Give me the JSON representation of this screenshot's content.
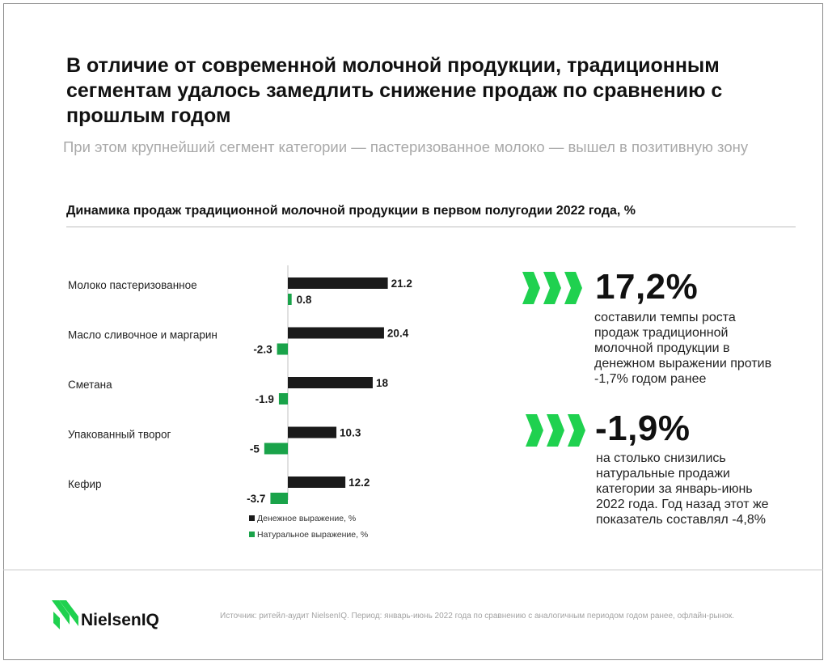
{
  "header": {
    "title": "В отличие от современной молочной продукции, традиционным сегментам удалось замедлить снижение продаж по сравнению с прошлым годом",
    "subtitle": "При этом крупнейший сегмент категории — пастеризованное молоко — вышел в позитивную зону"
  },
  "colors": {
    "money": "#1a1a1a",
    "volume": "#1aa34a",
    "accent_green": "#1fd14f"
  },
  "chart_data": {
    "type": "bar",
    "orientation": "horizontal",
    "title": "Динамика продаж традиционной молочной продукции в первом полугодии 2022 года, %",
    "categories": [
      "Молоко пастеризованное",
      "Масло сливочное и маргарин",
      "Сметана",
      "Упакованный творог",
      "Кефир"
    ],
    "series": [
      {
        "name": "Денежное выражение, %",
        "values": [
          21.2,
          20.4,
          18,
          10.3,
          12.2
        ],
        "labels": [
          "21.2",
          "20.4",
          "18",
          "10.3",
          "12.2"
        ]
      },
      {
        "name": "Натуральное выражение, %",
        "values": [
          0.8,
          -2.3,
          -1.9,
          -5,
          -3.7
        ],
        "labels": [
          "0.8",
          "-2.3",
          "-1.9",
          "-5",
          "-3.7"
        ]
      }
    ],
    "legend_position": "bottom-left",
    "grid": false
  },
  "stats": [
    {
      "value": "17,2%",
      "text": "составили темпы роста продаж традиционной молочной продукции в денежном выражении против -1,7% годом ранее"
    },
    {
      "value": "-1,9%",
      "text": "на столько снизились натуральные продажи категории за январь-июнь 2022 года. Год назад этот же показатель составлял -4,8%"
    }
  ],
  "footer": {
    "logo_text": "NielsenIQ",
    "source": "Источник: ритейл-аудит NielsenIQ. Период: январь-июнь 2022 года по сравнению с аналогичным периодом годом ранее, офлайн-рынок."
  }
}
